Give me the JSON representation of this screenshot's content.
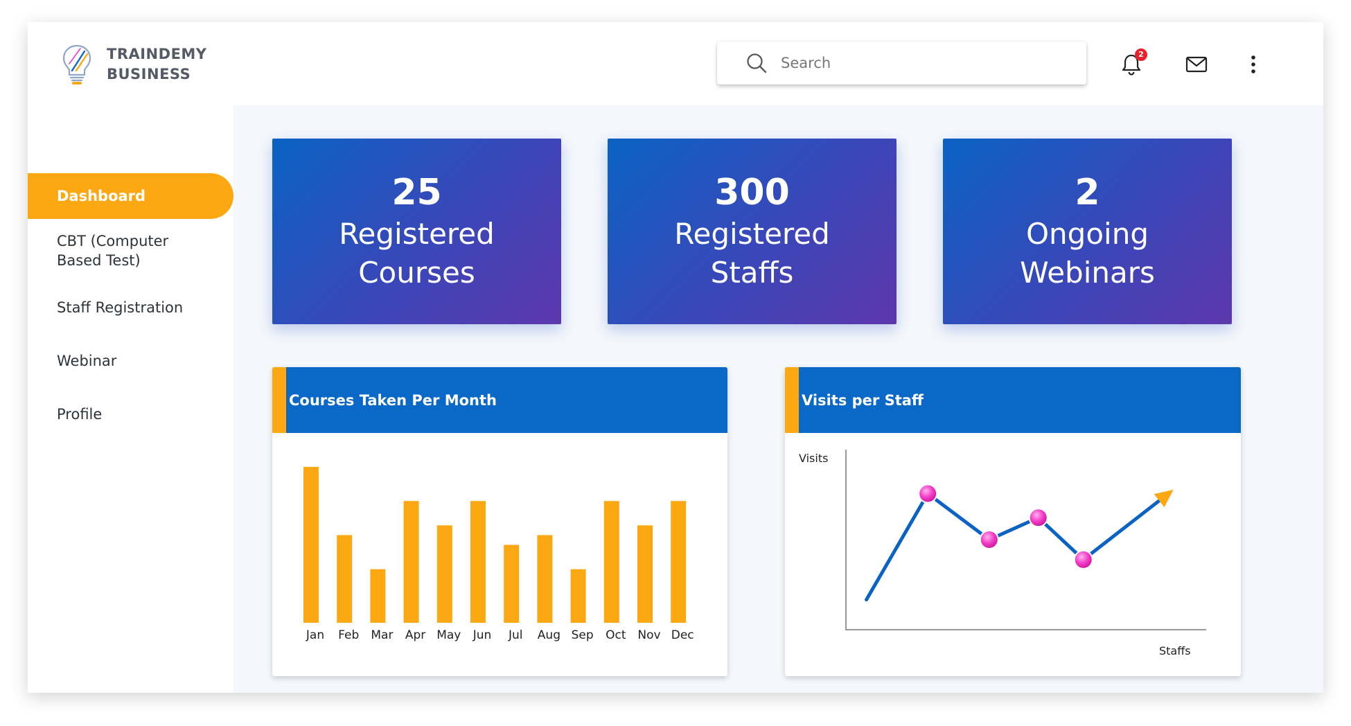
{
  "app": {
    "logo_line1": "TRAINDEMY",
    "logo_line2": "BUSINESS"
  },
  "header": {
    "search_placeholder": "Search",
    "notification_count": "2",
    "icons": [
      "search-icon",
      "bell-icon",
      "mail-icon",
      "more-vertical-icon"
    ]
  },
  "sidebar": {
    "items": [
      {
        "label": "Dashboard",
        "active": true
      },
      {
        "label": "CBT (Computer Based Test)",
        "active": false
      },
      {
        "label": "Staff Registration",
        "active": false
      },
      {
        "label": "Webinar",
        "active": false
      },
      {
        "label": "Profile",
        "active": false
      }
    ]
  },
  "stats": [
    {
      "value": "25",
      "label": "Registered Courses"
    },
    {
      "value": "300",
      "label": "Registered Staffs"
    },
    {
      "value": "2",
      "label": "Ongoing Webinars"
    }
  ],
  "colors": {
    "accent": "#fba813",
    "primary": "#0a69c6",
    "gradient_end": "#5d37ac",
    "line": "#0a63c4",
    "marker": "#f43dc8"
  },
  "chart_data": [
    {
      "type": "bar",
      "title": "Courses Taken Per Month",
      "categories": [
        "Jan",
        "Feb",
        "Mar",
        "Apr",
        "May",
        "Jun",
        "Jul",
        "Aug",
        "Sep",
        "Oct",
        "Nov",
        "Dec"
      ],
      "values": [
        16,
        9,
        5.5,
        12.5,
        10,
        12.5,
        8,
        9,
        5.5,
        12.5,
        10,
        12.5
      ],
      "ylim": [
        0,
        16
      ],
      "xlabel": "",
      "ylabel": "",
      "grid": false
    },
    {
      "type": "line",
      "title": "Visits per Staff",
      "xlabel": "Staffs",
      "ylabel": "Visits",
      "x": [
        0.5,
        2,
        3.5,
        4.7,
        5.8,
        8
      ],
      "y": [
        1.5,
        6.8,
        4.5,
        5.6,
        3.5,
        7.0
      ],
      "markers": [
        false,
        true,
        true,
        true,
        true,
        false
      ],
      "arrow_end": true,
      "xlim": [
        0,
        8.8
      ],
      "ylim": [
        0,
        9
      ],
      "grid": false
    }
  ]
}
